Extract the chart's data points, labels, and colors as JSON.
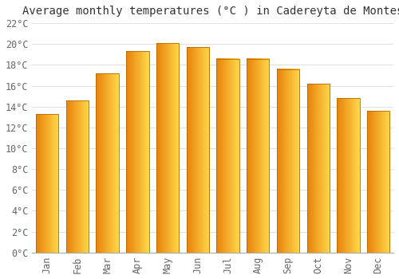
{
  "months": [
    "Jan",
    "Feb",
    "Mar",
    "Apr",
    "May",
    "Jun",
    "Jul",
    "Aug",
    "Sep",
    "Oct",
    "Nov",
    "Dec"
  ],
  "temperatures": [
    13.3,
    14.6,
    17.2,
    19.3,
    20.1,
    19.7,
    18.6,
    18.6,
    17.6,
    16.2,
    14.8,
    13.6
  ],
  "title": "Average monthly temperatures (°C ) in Cadereyta de Montes",
  "bar_color_left": "#E8820A",
  "bar_color_right": "#FFD84A",
  "bar_edge_color": "#B86800",
  "background_color": "#ffffff",
  "grid_color": "#e0e0e0",
  "ylim": [
    0,
    22
  ],
  "ytick_step": 2,
  "title_fontsize": 10,
  "tick_fontsize": 8.5,
  "font_family": "monospace",
  "bar_width": 0.75
}
